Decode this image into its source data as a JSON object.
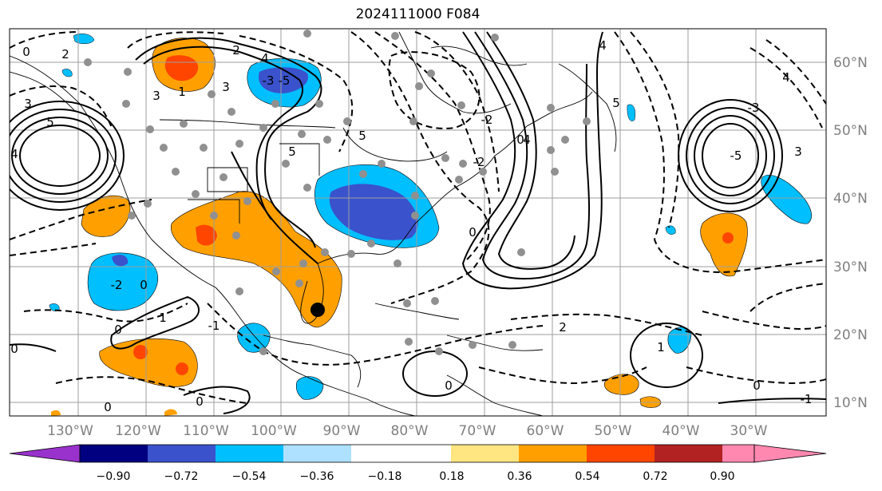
{
  "title": "2024111000 F084",
  "map": {
    "lon_ticks": [
      "130°W",
      "120°W",
      "110°W",
      "100°W",
      "90°W",
      "80°W",
      "70°W",
      "60°W",
      "50°W",
      "40°W",
      "30°W"
    ],
    "lat_ticks": [
      "60°N",
      "50°N",
      "40°N",
      "30°N",
      "20°N",
      "10°N"
    ],
    "contour_labels": [
      "0",
      "2",
      "4",
      "3",
      "2",
      "3",
      "5",
      "1",
      "3",
      "5",
      "4",
      "-2",
      "0",
      "0",
      "1",
      "0",
      "0",
      "0",
      "-1",
      "2",
      "-3",
      "-5",
      "5",
      "0",
      "4",
      "-2",
      "0",
      "5",
      "4",
      "-5",
      "4",
      "3",
      "-3",
      "-1",
      "1",
      "0",
      "-2",
      "0"
    ],
    "station_marker": "black dot near Florida",
    "colors": {
      "contour": "#000000",
      "grid": "#9e9e9e",
      "tick_label": "#808080",
      "station": "#909090"
    }
  },
  "colorbar": {
    "tick_labels": [
      "−0.90",
      "−0.72",
      "−0.54",
      "−0.36",
      "−0.18",
      "0.18",
      "0.36",
      "0.54",
      "0.72",
      "0.90"
    ],
    "colors": [
      "#9932cc",
      "#000080",
      "#3a52cc",
      "#00bfff",
      "#aee0ff",
      "#ffffff",
      "#ffe680",
      "#ffa000",
      "#ff4500",
      "#b22222",
      "#ff88b0"
    ]
  }
}
